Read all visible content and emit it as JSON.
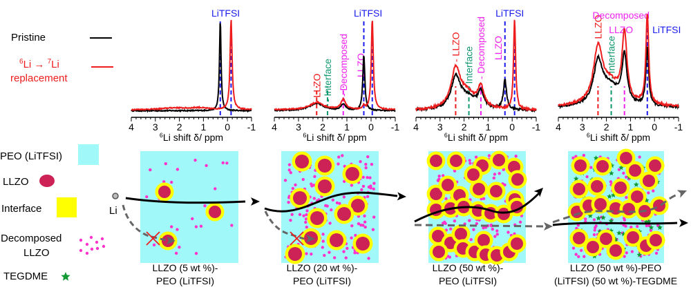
{
  "figure": {
    "legend_spectra": {
      "items": [
        {
          "label": "Pristine",
          "color": "#000000"
        },
        {
          "label_lines": [
            "Li → ",
            "Li"
          ],
          "superscripts": [
            "6",
            "7"
          ],
          "label_line2": "replacement",
          "color": "#ee1c1c"
        }
      ]
    },
    "legend_materials": {
      "items": [
        {
          "label": "PEO (LiTFSI)",
          "symbol": "square",
          "color": "#a0f8f8"
        },
        {
          "label": "LLZO",
          "symbol": "ellipse",
          "color": "#cc2255"
        },
        {
          "label": "Interface",
          "symbol": "square",
          "color": "#ffff00"
        },
        {
          "label_lines": [
            "Decomposed",
            "LLZO"
          ],
          "symbol": "dots",
          "color": "#ff33cc"
        },
        {
          "label": "TEGDME",
          "symbol": "star",
          "color": "#119933"
        }
      ]
    },
    "li_label": "Li",
    "colors": {
      "pristine": "#000000",
      "replacement": "#ee1c1c",
      "litfsi": "#1a1aee",
      "llzo": "#ee1c1c",
      "interface": "#109970",
      "decomposed": "#ee22ee",
      "peo": "#a0f8f8",
      "particle": "#cc2255",
      "shell": "#ffff00",
      "dot": "#ff33cc",
      "star": "#119933",
      "path_solid": "#000000",
      "path_dashed": "#666666",
      "block": "#ee1c1c"
    },
    "panels": [
      {
        "caption": [
          "LLZO (5 wt %)-",
          "PEO (LiTFSI)"
        ],
        "llzo_wt": 5,
        "tegdme_wt": 0,
        "li_path_blocked": true
      },
      {
        "caption": [
          "LLZO (20 wt %)-",
          "PEO (LiTFSI)"
        ],
        "llzo_wt": 20,
        "tegdme_wt": 0,
        "li_path_blocked": true
      },
      {
        "caption": [
          "LLZO (50 wt %)-",
          "PEO (LiTFSI)"
        ],
        "llzo_wt": 50,
        "tegdme_wt": 0,
        "li_path_blocked": false
      },
      {
        "caption": [
          "LLZO (50 wt %)-PEO",
          "(LiTFSI) (50 wt %)-TEGDME"
        ],
        "llzo_wt": 50,
        "tegdme_wt": 50,
        "li_path_blocked": false
      }
    ]
  },
  "chart_data": [
    {
      "type": "line",
      "title": "",
      "xlabel_prefix": "6",
      "xlabel": "Li shift δ/ ppm",
      "ylabel": "",
      "xlim": [
        4,
        -1
      ],
      "xticks": [
        4,
        3,
        2,
        1,
        0,
        -1
      ],
      "series": [
        {
          "name": "Pristine",
          "peaks": [
            {
              "center": 0.3,
              "height": 1.0,
              "width": 0.04
            }
          ],
          "baseline": 0.02
        },
        {
          "name": "6Li → 7Li replacement",
          "peaks": [
            {
              "center": -0.15,
              "height": 1.0,
              "width": 0.05
            },
            {
              "center": 2.2,
              "height": 0.02,
              "width": 0.6
            },
            {
              "center": 1.2,
              "height": 0.02,
              "width": 0.4
            }
          ],
          "baseline": 0.03
        }
      ],
      "annotations": [
        {
          "label": "LiTFSI",
          "x": [
            0.3,
            -0.15
          ],
          "kind": "litfsi",
          "orientation": "horizontal"
        }
      ]
    },
    {
      "type": "line",
      "title": "",
      "xlabel_prefix": "6",
      "xlabel": "Li shift δ/ ppm",
      "xlim": [
        4,
        -1
      ],
      "xticks": [
        4,
        3,
        2,
        1,
        0,
        -1
      ],
      "series": [
        {
          "name": "Pristine",
          "peaks": [
            {
              "center": 0.3,
              "height": 0.62,
              "width": 0.05
            },
            {
              "center": 2.25,
              "height": 0.08,
              "width": 0.35
            },
            {
              "center": 1.15,
              "height": 0.07,
              "width": 0.12
            }
          ],
          "baseline": 0.02
        },
        {
          "name": "6Li → 7Li replacement",
          "peaks": [
            {
              "center": -0.05,
              "height": 1.0,
              "width": 0.05
            },
            {
              "center": 2.25,
              "height": 0.08,
              "width": 0.35
            },
            {
              "center": 1.15,
              "height": 0.11,
              "width": 0.12
            },
            {
              "center": 0.3,
              "height": 0.04,
              "width": 0.05
            }
          ],
          "baseline": 0.03
        }
      ],
      "annotations": [
        {
          "label": "LLZO",
          "x": [
            2.25
          ],
          "kind": "llzo",
          "orientation": "vertical"
        },
        {
          "label": "Interface",
          "x": [
            1.8
          ],
          "kind": "interface",
          "orientation": "vertical"
        },
        {
          "label": "Decomposed",
          "label2": "LLZO",
          "x": [
            1.15
          ],
          "kind": "decomposed",
          "orientation": "vertical"
        },
        {
          "label": "LiTFSI",
          "x": [
            0.3,
            -0.05
          ],
          "kind": "litfsi",
          "orientation": "horizontal"
        }
      ]
    },
    {
      "type": "line",
      "title": "",
      "xlabel_prefix": "6",
      "xlabel": "Li shift δ/ ppm",
      "xlim": [
        4,
        -1
      ],
      "xticks": [
        4,
        3,
        2,
        1,
        0,
        -1
      ],
      "series": [
        {
          "name": "Pristine",
          "peaks": [
            {
              "center": 2.35,
              "height": 0.32,
              "width": 0.22
            },
            {
              "center": 1.9,
              "height": 0.14,
              "width": 0.5
            },
            {
              "center": 1.3,
              "height": 0.17,
              "width": 0.14
            },
            {
              "center": 0.3,
              "height": 0.32,
              "width": 0.08
            }
          ],
          "baseline": 0.02
        },
        {
          "name": "6Li → 7Li replacement",
          "peaks": [
            {
              "center": 2.35,
              "height": 0.4,
              "width": 0.22
            },
            {
              "center": 1.9,
              "height": 0.18,
              "width": 0.5
            },
            {
              "center": 1.3,
              "height": 0.21,
              "width": 0.14
            },
            {
              "center": -0.1,
              "height": 1.0,
              "width": 0.05
            }
          ],
          "baseline": 0.02
        }
      ],
      "annotations": [
        {
          "label": "LLZO",
          "x": [
            2.35
          ],
          "kind": "llzo",
          "orientation": "vertical"
        },
        {
          "label": "Interface",
          "x": [
            1.8
          ],
          "kind": "interface",
          "orientation": "vertical"
        },
        {
          "label": "Decomposed",
          "label2": "LLZO",
          "x": [
            1.3
          ],
          "kind": "decomposed",
          "orientation": "vertical"
        },
        {
          "label": "LiTFSI",
          "x": [
            0.3,
            -0.1
          ],
          "kind": "litfsi",
          "orientation": "horizontal"
        }
      ]
    },
    {
      "type": "line",
      "title": "",
      "xlabel_prefix": "6",
      "xlabel": "Li shift δ/ ppm",
      "xlim": [
        4,
        -1
      ],
      "xticks": [
        4,
        3,
        2,
        1,
        0,
        -1
      ],
      "series": [
        {
          "name": "Pristine",
          "peaks": [
            {
              "center": 2.35,
              "height": 0.45,
              "width": 0.22
            },
            {
              "center": 1.85,
              "height": 0.22,
              "width": 0.5
            },
            {
              "center": 1.25,
              "height": 0.52,
              "width": 0.12
            },
            {
              "center": 0.3,
              "height": 0.65,
              "width": 0.07
            }
          ],
          "baseline": 0.05
        },
        {
          "name": "6Li → 7Li replacement",
          "peaks": [
            {
              "center": 2.35,
              "height": 0.58,
              "width": 0.22
            },
            {
              "center": 1.85,
              "height": 0.24,
              "width": 0.5
            },
            {
              "center": 1.25,
              "height": 0.75,
              "width": 0.12
            },
            {
              "center": 0.3,
              "height": 1.0,
              "width": 0.07
            }
          ],
          "baseline": 0.06
        }
      ],
      "annotations": [
        {
          "label": "LLZO",
          "x": [
            2.35
          ],
          "kind": "llzo",
          "orientation": "vertical"
        },
        {
          "label": "Interface",
          "x": [
            1.8
          ],
          "kind": "interface",
          "orientation": "vertical"
        },
        {
          "label": "Decomposed",
          "label2": "LLZO",
          "x": [
            1.25
          ],
          "kind": "decomposed",
          "orientation": "horizontal"
        },
        {
          "label": "LiTFSI",
          "x": [
            0.3
          ],
          "kind": "litfsi",
          "orientation": "horizontal"
        }
      ]
    }
  ]
}
